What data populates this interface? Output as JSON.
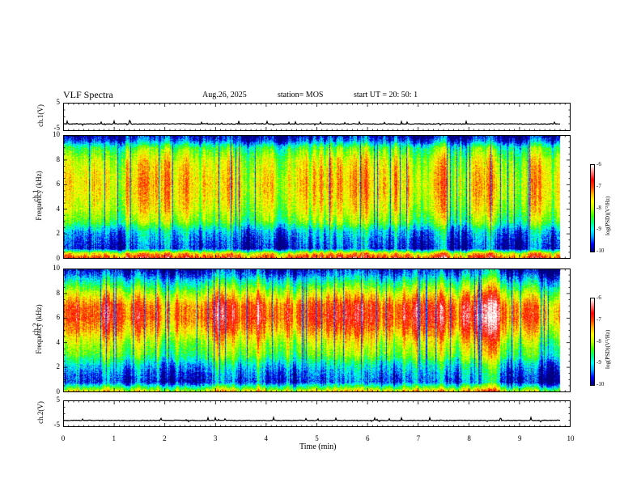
{
  "header": {
    "title": "VLF Spectra",
    "date": "Aug.26, 2025",
    "station": "station= MOS",
    "start": "start  UT  =   20: 50: 1"
  },
  "chart_data": [
    {
      "type": "line",
      "ylabel": "ch.1(V)",
      "yticks": [
        "5",
        "-5"
      ],
      "ylim": [
        -5,
        5
      ],
      "xlim": [
        0,
        10
      ],
      "baseline": -2.5,
      "data_end_min": 9.8
    },
    {
      "type": "heatmap",
      "ylabel_line1": "ch.1",
      "ylabel_line2": "Frequency (kHz)",
      "yticks": [
        "0",
        "2",
        "4",
        "6",
        "8",
        "10"
      ],
      "ylim": [
        0,
        10
      ],
      "xlim": [
        0,
        10
      ],
      "data_end_min": 9.8,
      "colorbar": {
        "label": "log(PSD)(V²/Hz)",
        "ticks": [
          "-6",
          "-7",
          "-8",
          "-9",
          "-10"
        ],
        "range": [
          -10,
          -6
        ]
      },
      "profile": [
        {
          "f": 0.0,
          "v": -6.8
        },
        {
          "f": 0.4,
          "v": -7.6
        },
        {
          "f": 0.8,
          "v": -9.7
        },
        {
          "f": 1.5,
          "v": -9.5
        },
        {
          "f": 2.2,
          "v": -9.2
        },
        {
          "f": 3.0,
          "v": -8.3
        },
        {
          "f": 4.0,
          "v": -7.9
        },
        {
          "f": 5.0,
          "v": -7.7
        },
        {
          "f": 6.0,
          "v": -7.6
        },
        {
          "f": 7.0,
          "v": -7.7
        },
        {
          "f": 8.0,
          "v": -7.9
        },
        {
          "f": 9.0,
          "v": -8.5
        },
        {
          "f": 9.6,
          "v": -9.6
        },
        {
          "f": 10.0,
          "v": -9.9
        }
      ]
    },
    {
      "type": "heatmap",
      "ylabel_line1": "ch.2",
      "ylabel_line2": "Frequency (kHz)",
      "yticks": [
        "0",
        "2",
        "4",
        "6",
        "8",
        "10"
      ],
      "ylim": [
        0,
        10
      ],
      "xlim": [
        0,
        10
      ],
      "data_end_min": 9.8,
      "colorbar": {
        "label": "log(PSD)(V²/Hz)",
        "ticks": [
          "-6",
          "-7",
          "-8",
          "-9",
          "-10"
        ],
        "range": [
          -10,
          -6
        ]
      },
      "profile": [
        {
          "f": 0.0,
          "v": -7.5
        },
        {
          "f": 0.4,
          "v": -8.6
        },
        {
          "f": 0.8,
          "v": -9.6
        },
        {
          "f": 1.5,
          "v": -9.4
        },
        {
          "f": 2.2,
          "v": -9.0
        },
        {
          "f": 3.0,
          "v": -8.3
        },
        {
          "f": 4.0,
          "v": -7.9
        },
        {
          "f": 5.0,
          "v": -7.3
        },
        {
          "f": 6.0,
          "v": -6.9
        },
        {
          "f": 7.0,
          "v": -7.0
        },
        {
          "f": 8.0,
          "v": -7.8
        },
        {
          "f": 9.0,
          "v": -8.8
        },
        {
          "f": 9.6,
          "v": -9.5
        },
        {
          "f": 10.0,
          "v": -9.8
        }
      ]
    },
    {
      "type": "line",
      "ylabel": "ch.2(V)",
      "yticks": [
        "5",
        "-5"
      ],
      "ylim": [
        -5,
        5
      ],
      "xlim": [
        0,
        10
      ],
      "baseline": -2.5,
      "data_end_min": 9.8
    }
  ],
  "xaxis": {
    "label": "Time  (min)",
    "ticks": [
      "0",
      "1",
      "2",
      "3",
      "4",
      "5",
      "6",
      "7",
      "8",
      "9",
      "10"
    ],
    "xlim": [
      0,
      10
    ]
  },
  "colors": {
    "colormap": [
      "#000080",
      "#0000ff",
      "#00a0ff",
      "#00ffff",
      "#00ff80",
      "#40ff00",
      "#c0ff00",
      "#ffff00",
      "#ffb000",
      "#ff4000",
      "#ff0000",
      "#ff8080",
      "#ffffff"
    ]
  }
}
